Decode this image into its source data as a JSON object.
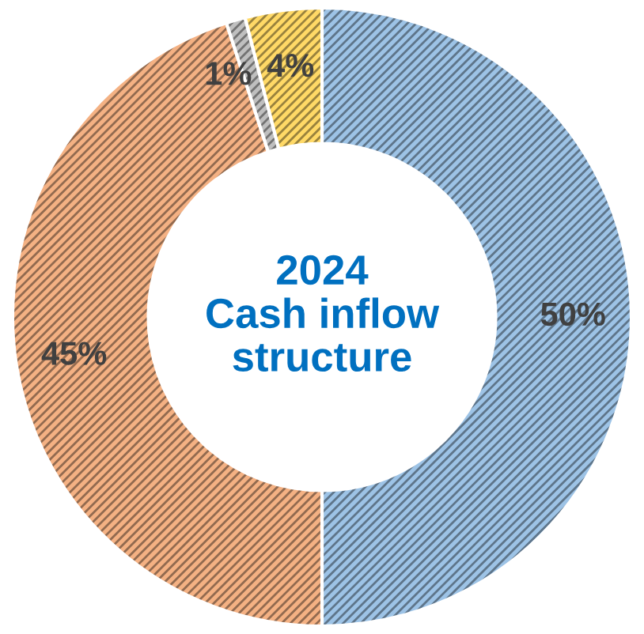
{
  "chart_data": {
    "type": "donut",
    "title": "2024\nCash inflow\nstructure",
    "categories": [
      null,
      null,
      null,
      null
    ],
    "values": [
      50,
      45,
      1,
      4
    ],
    "colors": [
      "#9dc3e6",
      "#f4b183",
      "#bfbfbf",
      "#ffd966"
    ],
    "value_labels": [
      "50%",
      "45%",
      "1%",
      "4%"
    ],
    "legend": false
  }
}
